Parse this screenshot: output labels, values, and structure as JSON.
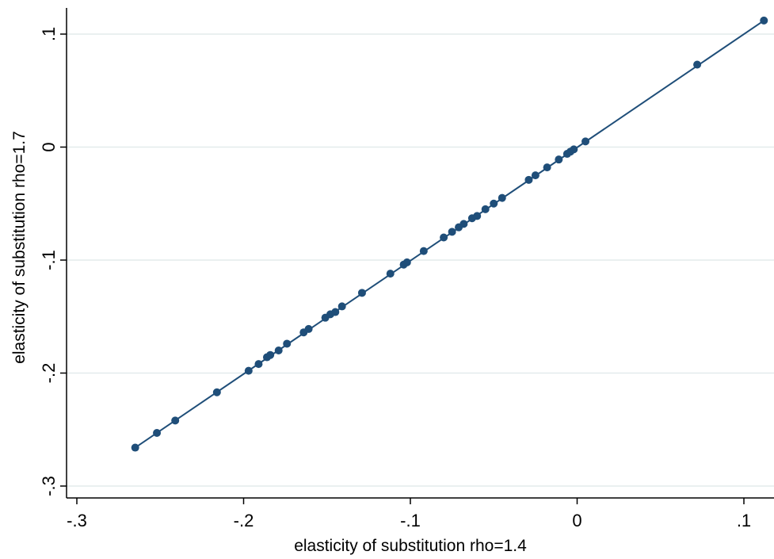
{
  "chart_data": {
    "type": "scatter",
    "xlabel": "elasticity of substitution rho=1.4",
    "ylabel": "elasticity of substitution rho=1.7",
    "xlim": [
      -0.3,
      0.11
    ],
    "ylim": [
      -0.3,
      0.11
    ],
    "x_ticks": [
      -0.3,
      -0.2,
      -0.1,
      0,
      0.1
    ],
    "x_tick_labels": [
      "-.3",
      "-.2",
      "-.1",
      "0",
      ".1"
    ],
    "y_ticks": [
      -0.3,
      -0.2,
      -0.1,
      0,
      0.1
    ],
    "y_tick_labels": [
      "-.3",
      "-.2",
      "-.1",
      "0",
      ".1"
    ],
    "grid": "horizontal",
    "colors": {
      "marker": "#1f4e79",
      "line": "#1f4e79",
      "grid": "#e3ebec",
      "axis": "#000000"
    },
    "series": [
      {
        "points": [
          [
            -0.265,
            -0.266
          ],
          [
            -0.252,
            -0.253
          ],
          [
            -0.241,
            -0.242
          ],
          [
            -0.216,
            -0.217
          ],
          [
            -0.197,
            -0.198
          ],
          [
            -0.191,
            -0.192
          ],
          [
            -0.186,
            -0.186
          ],
          [
            -0.184,
            -0.184
          ],
          [
            -0.179,
            -0.18
          ],
          [
            -0.174,
            -0.174
          ],
          [
            -0.164,
            -0.164
          ],
          [
            -0.161,
            -0.161
          ],
          [
            -0.151,
            -0.151
          ],
          [
            -0.148,
            -0.148
          ],
          [
            -0.145,
            -0.146
          ],
          [
            -0.141,
            -0.141
          ],
          [
            -0.129,
            -0.129
          ],
          [
            -0.112,
            -0.112
          ],
          [
            -0.104,
            -0.104
          ],
          [
            -0.102,
            -0.102
          ],
          [
            -0.092,
            -0.092
          ],
          [
            -0.08,
            -0.08
          ],
          [
            -0.075,
            -0.075
          ],
          [
            -0.071,
            -0.071
          ],
          [
            -0.068,
            -0.068
          ],
          [
            -0.063,
            -0.063
          ],
          [
            -0.06,
            -0.061
          ],
          [
            -0.055,
            -0.055
          ],
          [
            -0.05,
            -0.05
          ],
          [
            -0.045,
            -0.045
          ],
          [
            -0.029,
            -0.029
          ],
          [
            -0.025,
            -0.025
          ],
          [
            -0.018,
            -0.018
          ],
          [
            -0.011,
            -0.011
          ],
          [
            -0.006,
            -0.006
          ],
          [
            -0.004,
            -0.004
          ],
          [
            -0.002,
            -0.002
          ],
          [
            0.005,
            0.005
          ],
          [
            0.072,
            0.073
          ],
          [
            0.112,
            0.112
          ]
        ]
      }
    ],
    "fit_line": {
      "x": [
        -0.265,
        0.112
      ],
      "y": [
        -0.266,
        0.112
      ]
    }
  }
}
